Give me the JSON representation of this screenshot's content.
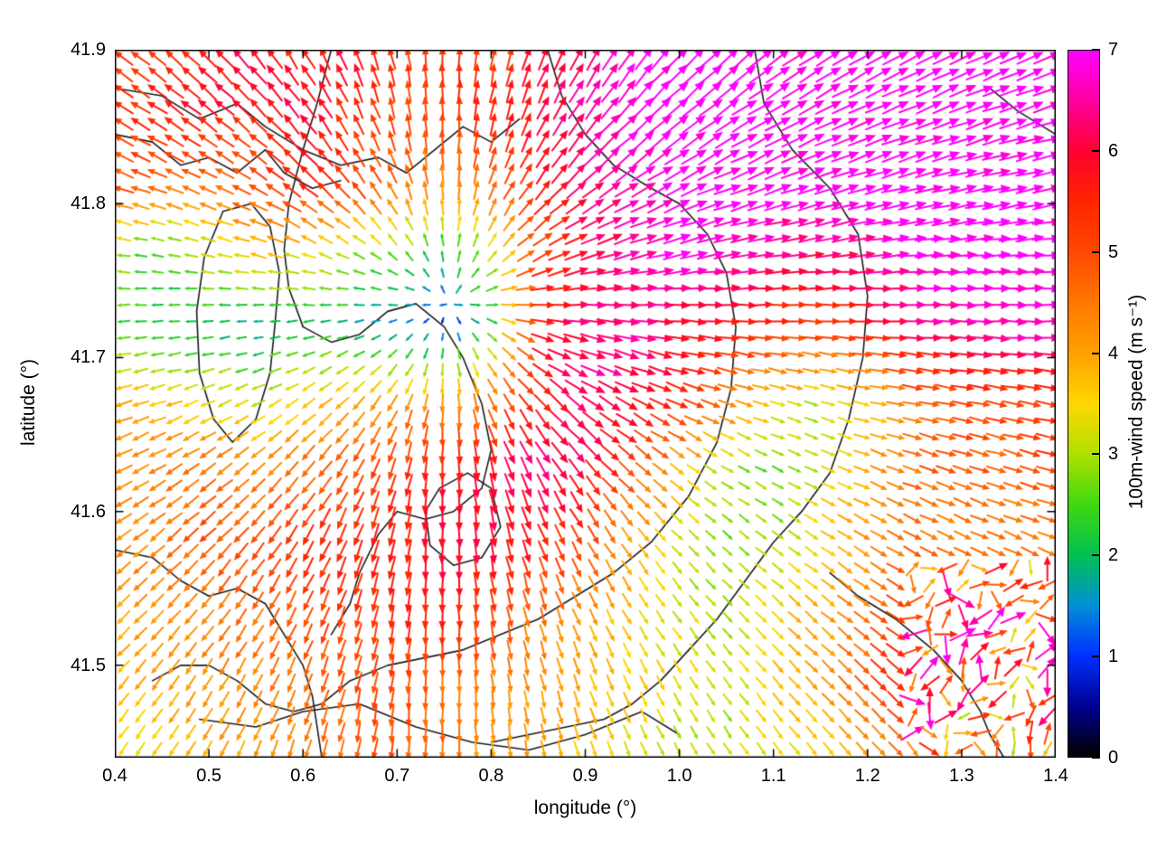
{
  "chart_data": {
    "type": "quiver",
    "title": "",
    "xlabel": "longitude (°)",
    "ylabel": "latitude (°)",
    "xlim": [
      0.4,
      1.4
    ],
    "ylim": [
      41.44,
      41.9
    ],
    "grid": "off",
    "xticks": {
      "values": [
        0.4,
        0.5,
        0.6,
        0.7,
        0.8,
        0.9,
        1.0,
        1.1,
        1.2,
        1.3,
        1.4
      ],
      "labels": [
        "0.4",
        "0.5",
        "0.6",
        "0.7",
        "0.8",
        "0.9",
        "1.0",
        "1.1",
        "1.2",
        "1.3",
        "1.4"
      ]
    },
    "yticks": {
      "values": [
        41.5,
        41.6,
        41.7,
        41.8,
        41.9
      ],
      "labels": [
        "41.5",
        "41.6",
        "41.7",
        "41.8",
        "41.9"
      ]
    },
    "colorbar": {
      "label": "100m-wind speed (m s⁻¹)",
      "min": 0,
      "max": 7,
      "ticks": [
        0,
        1,
        2,
        3,
        4,
        5,
        6,
        7
      ],
      "tick_labels": [
        "0",
        "1",
        "2",
        "3",
        "4",
        "5",
        "6",
        "7"
      ],
      "position": "right",
      "colormap": [
        [
          0,
          "#000000"
        ],
        [
          0.5,
          "#000090"
        ],
        [
          1,
          "#0030ff"
        ],
        [
          1.5,
          "#0090d8"
        ],
        [
          2,
          "#00c050"
        ],
        [
          2.5,
          "#40d810"
        ],
        [
          3,
          "#b0e000"
        ],
        [
          3.5,
          "#ffd800"
        ],
        [
          4,
          "#ffa000"
        ],
        [
          4.5,
          "#ff7800"
        ],
        [
          5,
          "#ff4800"
        ],
        [
          5.5,
          "#ff2400"
        ],
        [
          6,
          "#ff0030"
        ],
        [
          6.5,
          "#ff00a0"
        ],
        [
          7,
          "#ff00ff"
        ]
      ]
    },
    "wind_field": {
      "direction_model": "radial_outward",
      "center": [
        0.755,
        41.735
      ],
      "grid_lon": [
        0.4,
        0.45,
        0.5,
        0.55,
        0.6,
        0.65,
        0.7,
        0.75,
        0.8,
        0.85,
        0.9,
        0.95,
        1.0,
        1.05,
        1.1,
        1.15,
        1.2,
        1.25,
        1.3,
        1.35,
        1.4
      ],
      "grid_lat": [
        41.9,
        41.86,
        41.81,
        41.77,
        41.72,
        41.67,
        41.63,
        41.58,
        41.53,
        41.49,
        41.44
      ],
      "speed": [
        [
          5.5,
          5.2,
          5.8,
          6.2,
          5.6,
          6.0,
          5.2,
          5.5,
          5.2,
          5.8,
          6.4,
          6.8,
          7,
          7,
          7,
          7,
          7,
          7,
          7,
          7,
          7
        ],
        [
          5.2,
          5.6,
          6.0,
          5.5,
          6.2,
          5.4,
          5.0,
          5.2,
          5.5,
          6.0,
          6.6,
          7,
          7,
          7,
          7,
          7,
          7,
          7,
          7,
          7,
          7
        ],
        [
          5.0,
          4.6,
          4.4,
          5.0,
          5.6,
          5.2,
          4.6,
          4.2,
          4.6,
          5.6,
          6.2,
          6.6,
          7,
          7,
          7,
          7,
          7,
          7,
          7,
          7,
          7
        ],
        [
          2.8,
          2.4,
          3.2,
          3.8,
          3.4,
          3.0,
          2.6,
          2.2,
          3.0,
          5.2,
          6.0,
          6.6,
          7,
          6.8,
          6.4,
          6.2,
          6.6,
          7,
          7,
          7,
          7
        ],
        [
          2.6,
          2.2,
          2.0,
          1.6,
          2.2,
          1.8,
          1.4,
          0.8,
          2.2,
          5.6,
          6.4,
          6.4,
          6.0,
          5.8,
          5.4,
          5.2,
          5.6,
          6.2,
          6.6,
          6.6,
          6.8
        ],
        [
          4.0,
          3.8,
          3.4,
          3.2,
          3.6,
          4.0,
          4.4,
          4.2,
          4.6,
          5.6,
          6.4,
          6.0,
          5.4,
          4.4,
          3.6,
          3.0,
          3.6,
          4.6,
          5.0,
          5.2,
          5.4
        ],
        [
          4.2,
          4.4,
          4.6,
          4.2,
          4.6,
          5.0,
          5.2,
          5.6,
          6.0,
          6.4,
          6.0,
          5.0,
          4.0,
          3.0,
          2.6,
          3.2,
          3.8,
          4.6,
          5.0,
          4.6,
          5.2
        ],
        [
          4.2,
          4.4,
          5.0,
          5.0,
          5.4,
          5.6,
          5.6,
          6.0,
          6.0,
          5.6,
          5.0,
          4.0,
          3.2,
          2.6,
          3.0,
          3.6,
          4.2,
          4.6,
          4.2,
          4.6,
          4.2
        ],
        [
          4.0,
          4.2,
          4.4,
          4.6,
          5.0,
          5.2,
          5.4,
          5.6,
          5.0,
          4.6,
          4.0,
          3.6,
          3.2,
          3.0,
          3.6,
          4.0,
          4.6,
          5.6,
          6.0,
          5.0,
          6.0
        ],
        [
          3.6,
          4.0,
          4.2,
          4.4,
          4.6,
          5.0,
          5.0,
          4.6,
          4.4,
          4.0,
          4.0,
          3.6,
          3.4,
          3.0,
          3.6,
          4.0,
          5.0,
          6.0,
          5.4,
          4.2,
          5.2
        ],
        [
          3.4,
          3.6,
          4.0,
          4.0,
          4.4,
          4.6,
          5.0,
          4.6,
          4.0,
          4.0,
          3.6,
          3.4,
          3.0,
          3.0,
          3.4,
          3.6,
          4.0,
          4.6,
          3.2,
          4.4,
          5.0
        ]
      ]
    },
    "turbulent_region": {
      "lon_min": 1.24,
      "lat_max": 41.57,
      "direction_jitter_deg": 137,
      "speed_jitter": 1.6
    },
    "arrow_grid": {
      "nx": 56,
      "ny": 43
    },
    "contours": {
      "color": "#1a1a1a",
      "lines": [
        [
          [
            0.4,
            41.875
          ],
          [
            0.45,
            41.87
          ],
          [
            0.49,
            41.855
          ],
          [
            0.53,
            41.865
          ],
          [
            0.56,
            41.85
          ],
          [
            0.6,
            41.835
          ],
          [
            0.64,
            41.825
          ],
          [
            0.68,
            41.83
          ],
          [
            0.71,
            41.82
          ],
          [
            0.74,
            41.835
          ],
          [
            0.77,
            41.85
          ],
          [
            0.8,
            41.84
          ],
          [
            0.83,
            41.855
          ]
        ],
        [
          [
            0.4,
            41.845
          ],
          [
            0.44,
            41.84
          ],
          [
            0.47,
            41.825
          ],
          [
            0.5,
            41.83
          ],
          [
            0.53,
            41.82
          ],
          [
            0.56,
            41.835
          ],
          [
            0.58,
            41.82
          ],
          [
            0.61,
            41.81
          ],
          [
            0.64,
            41.815
          ]
        ],
        [
          [
            0.63,
            41.9
          ],
          [
            0.615,
            41.865
          ],
          [
            0.6,
            41.835
          ],
          [
            0.585,
            41.8
          ],
          [
            0.58,
            41.77
          ],
          [
            0.585,
            41.745
          ],
          [
            0.6,
            41.72
          ]
        ],
        [
          [
            0.515,
            41.795
          ],
          [
            0.545,
            41.8
          ],
          [
            0.565,
            41.785
          ],
          [
            0.575,
            41.755
          ],
          [
            0.57,
            41.72
          ],
          [
            0.565,
            41.69
          ],
          [
            0.55,
            41.66
          ],
          [
            0.525,
            41.645
          ],
          [
            0.505,
            41.66
          ],
          [
            0.49,
            41.69
          ],
          [
            0.487,
            41.73
          ],
          [
            0.495,
            41.765
          ],
          [
            0.515,
            41.795
          ]
        ],
        [
          [
            0.6,
            41.72
          ],
          [
            0.63,
            41.71
          ],
          [
            0.66,
            41.715
          ],
          [
            0.69,
            41.73
          ],
          [
            0.72,
            41.735
          ],
          [
            0.75,
            41.72
          ],
          [
            0.77,
            41.7
          ],
          [
            0.79,
            41.67
          ],
          [
            0.8,
            41.64
          ],
          [
            0.79,
            41.615
          ],
          [
            0.76,
            41.6
          ],
          [
            0.73,
            41.595
          ],
          [
            0.7,
            41.6
          ],
          [
            0.68,
            41.585
          ],
          [
            0.66,
            41.56
          ],
          [
            0.65,
            41.54
          ],
          [
            0.63,
            41.52
          ]
        ],
        [
          [
            0.86,
            41.9
          ],
          [
            0.875,
            41.87
          ],
          [
            0.9,
            41.845
          ],
          [
            0.93,
            41.825
          ],
          [
            0.97,
            41.81
          ],
          [
            1.0,
            41.8
          ],
          [
            1.03,
            41.78
          ],
          [
            1.05,
            41.755
          ],
          [
            1.06,
            41.72
          ],
          [
            1.055,
            41.68
          ],
          [
            1.04,
            41.645
          ],
          [
            1.01,
            41.61
          ],
          [
            0.97,
            41.58
          ],
          [
            0.93,
            41.56
          ],
          [
            0.89,
            41.545
          ],
          [
            0.85,
            41.53
          ],
          [
            0.81,
            41.52
          ],
          [
            0.77,
            41.51
          ],
          [
            0.73,
            41.505
          ],
          [
            0.69,
            41.5
          ],
          [
            0.65,
            41.49
          ],
          [
            0.62,
            41.475
          ],
          [
            0.59,
            41.47
          ],
          [
            0.56,
            41.475
          ],
          [
            0.53,
            41.49
          ],
          [
            0.5,
            41.5
          ],
          [
            0.47,
            41.5
          ],
          [
            0.44,
            41.49
          ]
        ],
        [
          [
            1.08,
            41.9
          ],
          [
            1.09,
            41.865
          ],
          [
            1.12,
            41.835
          ],
          [
            1.16,
            41.81
          ],
          [
            1.19,
            41.78
          ],
          [
            1.2,
            41.74
          ],
          [
            1.195,
            41.7
          ],
          [
            1.18,
            41.66
          ],
          [
            1.16,
            41.625
          ],
          [
            1.13,
            41.6
          ],
          [
            1.1,
            41.58
          ],
          [
            1.07,
            41.555
          ],
          [
            1.04,
            41.53
          ],
          [
            1.01,
            41.51
          ],
          [
            0.98,
            41.49
          ],
          [
            0.95,
            41.475
          ],
          [
            0.92,
            41.465
          ],
          [
            0.88,
            41.46
          ],
          [
            0.84,
            41.455
          ],
          [
            0.8,
            41.45
          ]
        ],
        [
          [
            0.4,
            41.575
          ],
          [
            0.44,
            41.57
          ],
          [
            0.47,
            41.555
          ],
          [
            0.5,
            41.545
          ],
          [
            0.53,
            41.55
          ],
          [
            0.56,
            41.54
          ],
          [
            0.58,
            41.52
          ],
          [
            0.6,
            41.5
          ],
          [
            0.61,
            41.48
          ],
          [
            0.615,
            41.46
          ],
          [
            0.62,
            41.44
          ]
        ],
        [
          [
            1.16,
            41.56
          ],
          [
            1.19,
            41.545
          ],
          [
            1.23,
            41.53
          ],
          [
            1.27,
            41.51
          ],
          [
            1.3,
            41.49
          ],
          [
            1.32,
            41.47
          ],
          [
            1.33,
            41.455
          ],
          [
            1.345,
            41.44
          ]
        ],
        [
          [
            1.33,
            41.875
          ],
          [
            1.36,
            41.86
          ],
          [
            1.4,
            41.845
          ]
        ],
        [
          [
            0.49,
            41.465
          ],
          [
            0.55,
            41.46
          ],
          [
            0.6,
            41.47
          ],
          [
            0.66,
            41.475
          ],
          [
            0.72,
            41.46
          ],
          [
            0.78,
            41.45
          ],
          [
            0.84,
            41.445
          ],
          [
            0.9,
            41.455
          ],
          [
            0.96,
            41.47
          ],
          [
            1.0,
            41.455
          ]
        ],
        [
          [
            0.745,
            41.615
          ],
          [
            0.775,
            41.625
          ],
          [
            0.8,
            41.615
          ],
          [
            0.81,
            41.59
          ],
          [
            0.79,
            41.57
          ],
          [
            0.76,
            41.565
          ],
          [
            0.735,
            41.578
          ],
          [
            0.73,
            41.6
          ],
          [
            0.745,
            41.615
          ]
        ]
      ]
    }
  }
}
